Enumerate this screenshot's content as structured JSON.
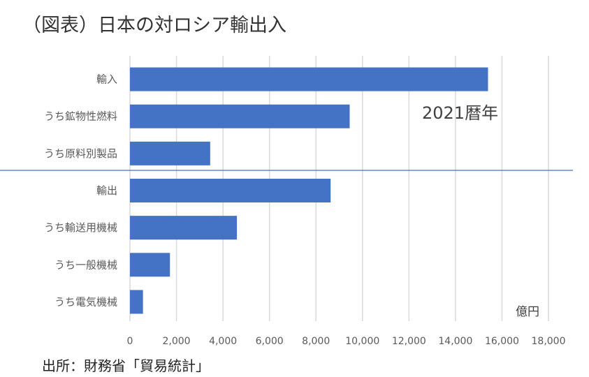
{
  "title": "（図表）日本の対ロシア輸出入",
  "source": "出所：財務省「貿易統計」",
  "chart_data": {
    "type": "bar",
    "orientation": "horizontal",
    "categories": [
      "輸入",
      "うち鉱物性燃料",
      "うち原料別製品",
      "輸出",
      "うち輸送用機械",
      "うち一般機械",
      "うち電気機械"
    ],
    "values": [
      15400,
      9450,
      3450,
      8630,
      4600,
      1720,
      560
    ],
    "xlim": [
      0,
      18000
    ],
    "xticks": [
      0,
      2000,
      4000,
      6000,
      8000,
      10000,
      12000,
      14000,
      16000,
      18000
    ],
    "xtick_labels": [
      "0",
      "2,000",
      "4,000",
      "6,000",
      "8,000",
      "10,000",
      "12,000",
      "14,000",
      "16,000",
      "18,000"
    ],
    "unit": "億円",
    "annotation": "2021暦年",
    "grid": true,
    "bar_color": "#4472c4",
    "separator_color": "#4472c4"
  }
}
